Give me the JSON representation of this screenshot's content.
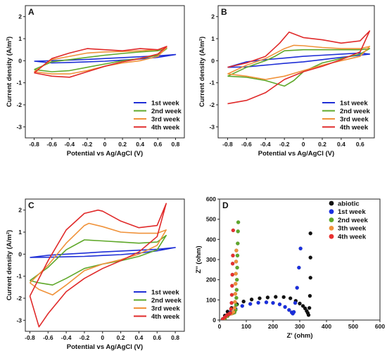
{
  "chart_data": [
    {
      "panel": "A",
      "type": "line",
      "xlabel": "Potential vs Ag/AgCl (V)",
      "ylabel": "Current density (A/m²)",
      "xlim": [
        -0.9,
        0.9
      ],
      "ylim": [
        -3.5,
        2.5
      ],
      "xticks": [
        -0.8,
        -0.6,
        -0.4,
        -0.2,
        0.0,
        0.2,
        0.4,
        0.6,
        0.8
      ],
      "yticks": [
        -3,
        -2,
        -1,
        0,
        1,
        2
      ],
      "legend_position": "bottom-right",
      "series": [
        {
          "name": "1st week",
          "color": "#1f2fd6",
          "x": [
            -0.8,
            -0.6,
            -0.4,
            -0.2,
            0.0,
            0.2,
            0.4,
            0.6,
            0.8,
            0.6,
            0.4,
            0.2,
            0.0,
            -0.2,
            -0.4,
            -0.6,
            -0.8
          ],
          "y": [
            -0.02,
            0.0,
            0.03,
            0.06,
            0.1,
            0.14,
            0.18,
            0.22,
            0.28,
            0.15,
            0.08,
            0.03,
            -0.02,
            -0.05,
            -0.08,
            -0.1,
            -0.02
          ]
        },
        {
          "name": "2nd week",
          "color": "#5fa82a",
          "x": [
            -0.8,
            -0.6,
            -0.4,
            -0.2,
            0.0,
            0.2,
            0.4,
            0.6,
            0.7,
            0.6,
            0.4,
            0.2,
            0.0,
            -0.2,
            -0.4,
            -0.6,
            -0.8
          ],
          "y": [
            -0.4,
            -0.05,
            0.05,
            0.15,
            0.25,
            0.33,
            0.4,
            0.45,
            0.55,
            0.25,
            0.1,
            0.0,
            -0.15,
            -0.3,
            -0.45,
            -0.5,
            -0.4
          ]
        },
        {
          "name": "3rd week",
          "color": "#f0923a",
          "x": [
            -0.8,
            -0.6,
            -0.4,
            -0.2,
            0.0,
            0.2,
            0.4,
            0.6,
            0.7,
            0.6,
            0.4,
            0.2,
            0.0,
            -0.2,
            -0.4,
            -0.6,
            -0.8
          ],
          "y": [
            -0.5,
            0.05,
            0.2,
            0.35,
            0.4,
            0.42,
            0.45,
            0.5,
            0.6,
            0.2,
            0.0,
            -0.1,
            -0.25,
            -0.45,
            -0.6,
            -0.6,
            -0.5
          ]
        },
        {
          "name": "4th week",
          "color": "#e02a2a",
          "x": [
            -0.8,
            -0.6,
            -0.4,
            -0.2,
            0.0,
            0.2,
            0.4,
            0.6,
            0.7,
            0.6,
            0.4,
            0.2,
            0.0,
            -0.2,
            -0.4,
            -0.6,
            -0.8
          ],
          "y": [
            -0.55,
            0.1,
            0.35,
            0.55,
            0.5,
            0.45,
            0.55,
            0.5,
            0.65,
            0.3,
            0.1,
            -0.05,
            -0.25,
            -0.5,
            -0.75,
            -0.7,
            -0.55
          ]
        }
      ]
    },
    {
      "panel": "B",
      "type": "line",
      "xlabel": "Potential vs Ag/AgCl (V)",
      "ylabel": "Current density (A/m²)",
      "xlim": [
        -0.9,
        0.75
      ],
      "ylim": [
        -3.5,
        2.5
      ],
      "xticks": [
        -0.8,
        -0.6,
        -0.4,
        -0.2,
        0.0,
        0.2,
        0.4,
        0.6
      ],
      "yticks": [
        -3,
        -2,
        -1,
        0,
        1,
        2
      ],
      "legend_position": "bottom-right",
      "series": [
        {
          "name": "1st week",
          "color": "#1f2fd6",
          "x": [
            -0.8,
            -0.6,
            -0.4,
            -0.2,
            0.0,
            0.2,
            0.4,
            0.6,
            0.7,
            0.6,
            0.4,
            0.2,
            0.0,
            -0.2,
            -0.4,
            -0.6,
            -0.8
          ],
          "y": [
            -0.3,
            -0.05,
            0.05,
            0.12,
            0.2,
            0.25,
            0.3,
            0.35,
            0.3,
            0.25,
            0.15,
            0.05,
            -0.05,
            -0.12,
            -0.2,
            -0.28,
            -0.3
          ]
        },
        {
          "name": "2nd week",
          "color": "#5fa82a",
          "x": [
            -0.8,
            -0.6,
            -0.4,
            -0.3,
            -0.2,
            0.0,
            0.2,
            0.4,
            0.6,
            0.7,
            0.6,
            0.4,
            0.2,
            0.0,
            -0.1,
            -0.2,
            -0.4,
            -0.6,
            -0.8
          ],
          "y": [
            -0.7,
            -0.3,
            0.0,
            0.2,
            0.45,
            0.5,
            0.5,
            0.5,
            0.5,
            0.55,
            0.3,
            0.1,
            -0.1,
            -0.5,
            -0.9,
            -1.15,
            -0.9,
            -0.75,
            -0.7
          ]
        },
        {
          "name": "3rd week",
          "color": "#f0923a",
          "x": [
            -0.8,
            -0.6,
            -0.4,
            -0.2,
            -0.1,
            0.0,
            0.2,
            0.4,
            0.6,
            0.7,
            0.6,
            0.4,
            0.2,
            0.0,
            -0.2,
            -0.4,
            -0.6,
            -0.8
          ],
          "y": [
            -0.6,
            -0.2,
            0.1,
            0.55,
            0.7,
            0.68,
            0.6,
            0.55,
            0.55,
            0.65,
            0.2,
            0.0,
            -0.2,
            -0.45,
            -0.7,
            -0.85,
            -0.7,
            -0.6
          ]
        },
        {
          "name": "4th week",
          "color": "#e02a2a",
          "x": [
            -0.8,
            -0.6,
            -0.4,
            -0.25,
            -0.15,
            0.0,
            0.2,
            0.4,
            0.6,
            0.7,
            0.6,
            0.4,
            0.2,
            0.0,
            -0.2,
            -0.3,
            -0.4,
            -0.6,
            -0.8
          ],
          "y": [
            -0.3,
            -0.1,
            0.2,
            0.8,
            1.3,
            1.05,
            0.95,
            0.8,
            0.9,
            1.35,
            0.4,
            0.05,
            -0.25,
            -0.5,
            -0.85,
            -1.15,
            -1.45,
            -1.8,
            -1.95
          ]
        }
      ]
    },
    {
      "panel": "C",
      "type": "line",
      "xlabel": "Potential vs Ag/AgCl (V)",
      "ylabel": "Current density (A/m²)",
      "xlim": [
        -0.85,
        0.9
      ],
      "ylim": [
        -3.5,
        2.5
      ],
      "xticks": [
        -0.8,
        -0.6,
        -0.4,
        -0.2,
        0.0,
        0.2,
        0.4,
        0.6,
        0.8
      ],
      "yticks": [
        -3,
        -2,
        -1,
        0,
        1,
        2
      ],
      "legend_position": "bottom-right",
      "series": [
        {
          "name": "1st week",
          "color": "#1f2fd6",
          "x": [
            -0.8,
            -0.6,
            -0.4,
            -0.2,
            0.0,
            0.2,
            0.4,
            0.6,
            0.8,
            0.6,
            0.4,
            0.2,
            0.0,
            -0.2,
            -0.4,
            -0.6,
            -0.8
          ],
          "y": [
            -0.15,
            -0.05,
            0.0,
            0.05,
            0.1,
            0.14,
            0.18,
            0.22,
            0.3,
            0.15,
            0.05,
            -0.02,
            -0.06,
            -0.1,
            -0.12,
            -0.14,
            -0.15
          ]
        },
        {
          "name": "2nd week",
          "color": "#5fa82a",
          "x": [
            -0.8,
            -0.6,
            -0.4,
            -0.2,
            0.0,
            0.2,
            0.4,
            0.6,
            0.7,
            0.6,
            0.4,
            0.2,
            0.0,
            -0.2,
            -0.4,
            -0.55,
            -0.7,
            -0.8
          ],
          "y": [
            -1.2,
            -0.6,
            0.2,
            0.65,
            0.6,
            0.55,
            0.5,
            0.55,
            0.85,
            0.2,
            -0.1,
            -0.3,
            -0.45,
            -0.65,
            -1.1,
            -1.4,
            -1.3,
            -1.2
          ]
        },
        {
          "name": "3rd week",
          "color": "#f0923a",
          "x": [
            -0.8,
            -0.6,
            -0.4,
            -0.2,
            -0.15,
            0.0,
            0.2,
            0.4,
            0.6,
            0.7,
            0.6,
            0.4,
            0.2,
            0.0,
            -0.2,
            -0.4,
            -0.55,
            -0.7,
            -0.8
          ],
          "y": [
            -1.3,
            -0.5,
            0.5,
            1.3,
            1.4,
            1.25,
            1.0,
            0.95,
            0.95,
            1.1,
            0.4,
            0.0,
            -0.25,
            -0.45,
            -0.75,
            -1.4,
            -1.85,
            -1.6,
            -1.3
          ]
        },
        {
          "name": "4th week",
          "color": "#e02a2a",
          "x": [
            -0.8,
            -0.6,
            -0.4,
            -0.2,
            -0.05,
            0.0,
            0.2,
            0.4,
            0.6,
            0.7,
            0.6,
            0.4,
            0.2,
            0.0,
            -0.2,
            -0.4,
            -0.6,
            -0.7,
            -0.8
          ],
          "y": [
            -1.9,
            -0.3,
            1.1,
            1.85,
            2.0,
            1.95,
            1.5,
            1.2,
            1.3,
            2.3,
            0.8,
            0.1,
            -0.3,
            -0.65,
            -1.1,
            -1.7,
            -2.7,
            -3.3,
            -1.9
          ]
        }
      ]
    },
    {
      "panel": "D",
      "type": "scatter",
      "xlabel": "Z' (ohm)",
      "ylabel": "Z'' (ohm)",
      "xlim": [
        0,
        600
      ],
      "ylim": [
        0,
        600
      ],
      "xticks": [
        0,
        100,
        200,
        300,
        400,
        500,
        600
      ],
      "yticks": [
        0,
        100,
        200,
        300,
        400,
        500,
        600
      ],
      "legend_position": "top-right",
      "series": [
        {
          "name": "abiotic",
          "color": "#111111",
          "x": [
            12,
            20,
            30,
            45,
            65,
            90,
            120,
            150,
            180,
            210,
            240,
            265,
            285,
            300,
            312,
            320,
            326,
            330,
            333,
            336,
            338,
            340,
            340,
            340
          ],
          "y": [
            5,
            22,
            42,
            60,
            78,
            92,
            102,
            108,
            112,
            115,
            114,
            108,
            95,
            82,
            70,
            58,
            45,
            35,
            25,
            60,
            120,
            210,
            310,
            430
          ]
        },
        {
          "name": "1st week",
          "color": "#1a2fe0",
          "x": [
            15,
            25,
            40,
            60,
            85,
            115,
            145,
            175,
            200,
            225,
            245,
            260,
            270,
            274,
            278,
            283,
            290,
            297,
            303
          ],
          "y": [
            5,
            20,
            38,
            55,
            70,
            80,
            86,
            88,
            85,
            78,
            65,
            50,
            38,
            32,
            40,
            85,
            160,
            260,
            355
          ]
        },
        {
          "name": "2nd week",
          "color": "#5fa82a",
          "x": [
            20,
            30,
            40,
            50,
            56,
            60,
            62,
            63,
            64,
            65,
            66,
            67,
            68,
            69,
            70
          ],
          "y": [
            5,
            20,
            32,
            35,
            38,
            50,
            75,
            110,
            150,
            200,
            260,
            320,
            380,
            440,
            485
          ]
        },
        {
          "name": "3th week",
          "color": "#f0923a",
          "x": [
            15,
            25,
            35,
            45,
            52,
            56,
            58,
            59,
            60,
            61,
            62,
            63
          ],
          "y": [
            5,
            18,
            28,
            32,
            40,
            60,
            90,
            130,
            180,
            230,
            290,
            345
          ]
        },
        {
          "name": "4th week",
          "color": "#e83030",
          "x": [
            12,
            20,
            28,
            35,
            40,
            43,
            45,
            46,
            47,
            48,
            49,
            50,
            51
          ],
          "y": [
            5,
            15,
            25,
            30,
            35,
            55,
            85,
            125,
            170,
            225,
            280,
            320,
            445
          ]
        }
      ]
    }
  ]
}
